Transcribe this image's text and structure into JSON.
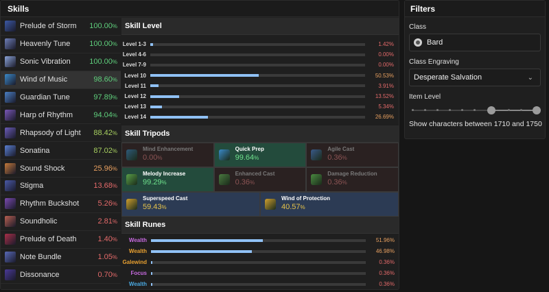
{
  "skills_panel": {
    "title": "Skills",
    "items": [
      {
        "name": "Prelude of Storm",
        "pct": "100.00",
        "color": "#5fcf7c",
        "icon": "#3c5aa6"
      },
      {
        "name": "Heavenly Tune",
        "pct": "100.00",
        "color": "#5fcf7c",
        "icon": "#6f7fb8"
      },
      {
        "name": "Sonic Vibration",
        "pct": "100.00",
        "color": "#5fcf7c",
        "icon": "#8ba4d8"
      },
      {
        "name": "Wind of Music",
        "pct": "98.60",
        "color": "#5fcf7c",
        "icon": "#3b8ac9"
      },
      {
        "name": "Guardian Tune",
        "pct": "97.89",
        "color": "#5fcf7c",
        "icon": "#4a7fc4"
      },
      {
        "name": "Harp of Rhythm",
        "pct": "94.04",
        "color": "#5fcf7c",
        "icon": "#7a58b8"
      },
      {
        "name": "Rhapsody of Light",
        "pct": "88.42",
        "color": "#a8d060",
        "icon": "#6b5db8"
      },
      {
        "name": "Sonatina",
        "pct": "87.02",
        "color": "#a8d060",
        "icon": "#5a7fd0"
      },
      {
        "name": "Sound Shock",
        "pct": "25.96",
        "color": "#e8a060",
        "icon": "#c47a3a"
      },
      {
        "name": "Stigma",
        "pct": "13.68",
        "color": "#e46a6a",
        "icon": "#4a5aa8"
      },
      {
        "name": "Rhythm Buckshot",
        "pct": "5.26",
        "color": "#e46a6a",
        "icon": "#7a4ab0"
      },
      {
        "name": "Soundholic",
        "pct": "2.81",
        "color": "#e46a6a",
        "icon": "#b86050"
      },
      {
        "name": "Prelude of Death",
        "pct": "1.40",
        "color": "#e46a6a",
        "icon": "#a83048"
      },
      {
        "name": "Note Bundle",
        "pct": "1.05",
        "color": "#e46a6a",
        "icon": "#5a6ab8"
      },
      {
        "name": "Dissonance",
        "pct": "0.70",
        "color": "#e46a6a",
        "icon": "#4a3a98"
      }
    ]
  },
  "skill_level": {
    "title": "Skill Level",
    "rows": [
      {
        "label": "Level 1-3",
        "pct": "1.42%",
        "value": 1.42,
        "color": "#e46a6a"
      },
      {
        "label": "Level 4-6",
        "pct": "0.00%",
        "value": 0.0,
        "color": "#e46a6a"
      },
      {
        "label": "Level 7-9",
        "pct": "0.00%",
        "value": 0.0,
        "color": "#e46a6a"
      },
      {
        "label": "Level 10",
        "pct": "50.53%",
        "value": 50.53,
        "color": "#e8a060"
      },
      {
        "label": "Level 11",
        "pct": "3.91%",
        "value": 3.91,
        "color": "#e46a6a"
      },
      {
        "label": "Level 12",
        "pct": "13.52%",
        "value": 13.52,
        "color": "#e46a6a"
      },
      {
        "label": "Level 13",
        "pct": "5.34%",
        "value": 5.34,
        "color": "#e46a6a"
      },
      {
        "label": "Level 14",
        "pct": "26.69%",
        "value": 26.69,
        "color": "#e8a060"
      }
    ]
  },
  "skill_tripods": {
    "title": "Skill Tripods",
    "rows": [
      [
        {
          "name": "Mind Enhancement",
          "pct": "0.00",
          "style": "dim",
          "icon": "#2f5a7a",
          "icon_name": "mind-enhancement-icon"
        },
        {
          "name": "Quick Prep",
          "pct": "99.64",
          "style": "green",
          "icon": "#3a8ac9",
          "icon_name": "quick-prep-icon"
        },
        {
          "name": "Agile Cast",
          "pct": "0.36",
          "style": "dim",
          "icon": "#3a5a8a",
          "icon_name": "agile-cast-icon"
        }
      ],
      [
        {
          "name": "Melody Increase",
          "pct": "99.29",
          "style": "green",
          "icon": "#5aa048",
          "icon_name": "melody-increase-icon"
        },
        {
          "name": "Enhanced Cast",
          "pct": "0.36",
          "style": "dim",
          "icon": "#4a7a40",
          "icon_name": "enhanced-cast-icon"
        },
        {
          "name": "Damage Reduction",
          "pct": "0.36",
          "style": "dim",
          "icon": "#4a8a40",
          "icon_name": "damage-reduction-icon"
        }
      ],
      [
        {
          "name": "Superspeed Cast",
          "pct": "59.43",
          "style": "wide",
          "icon": "#d0a030",
          "icon_name": "superspeed-cast-icon"
        },
        {
          "name": "Wind of Protection",
          "pct": "40.57",
          "style": "wide",
          "icon": "#d0a030",
          "icon_name": "wind-of-protection-icon"
        }
      ]
    ]
  },
  "skill_runes": {
    "title": "Skill Runes",
    "rows": [
      {
        "label": "Wealth",
        "label_color": "#c86ae0",
        "pct": "51.96%",
        "value": 51.96,
        "pct_color": "#e8a060"
      },
      {
        "label": "Wealth",
        "label_color": "#e8a030",
        "pct": "46.98%",
        "value": 46.98,
        "pct_color": "#e8a060"
      },
      {
        "label": "Galewind",
        "label_color": "#e8a030",
        "pct": "0.36%",
        "value": 0.36,
        "pct_color": "#e46a6a"
      },
      {
        "label": "Focus",
        "label_color": "#c86ae0",
        "pct": "0.36%",
        "value": 0.36,
        "pct_color": "#e46a6a"
      },
      {
        "label": "Wealth",
        "label_color": "#4aa8e0",
        "pct": "0.36%",
        "value": 0.36,
        "pct_color": "#e46a6a"
      }
    ]
  },
  "filters": {
    "title": "Filters",
    "class_label": "Class",
    "class_value": "Bard",
    "engraving_label": "Class Engraving",
    "engraving_value": "Desperate Salvation",
    "item_level_label": "Item Level",
    "range_text": "Show characters between 1710 and 1750"
  },
  "pct_symbol": "%"
}
